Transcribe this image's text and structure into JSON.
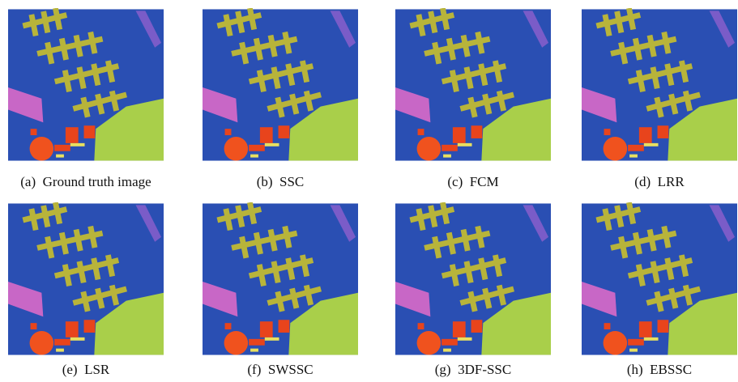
{
  "panels": [
    {
      "caption": "(a)  Ground truth image"
    },
    {
      "caption": "(b)  SSC"
    },
    {
      "caption": "(c)  FCM"
    },
    {
      "caption": "(d)  LRR"
    },
    {
      "caption": "(e)  LSR"
    },
    {
      "caption": "(f)  SWSSC"
    },
    {
      "caption": "(g)  3DF-SSC"
    },
    {
      "caption": "(h)  EBSSC"
    }
  ]
}
